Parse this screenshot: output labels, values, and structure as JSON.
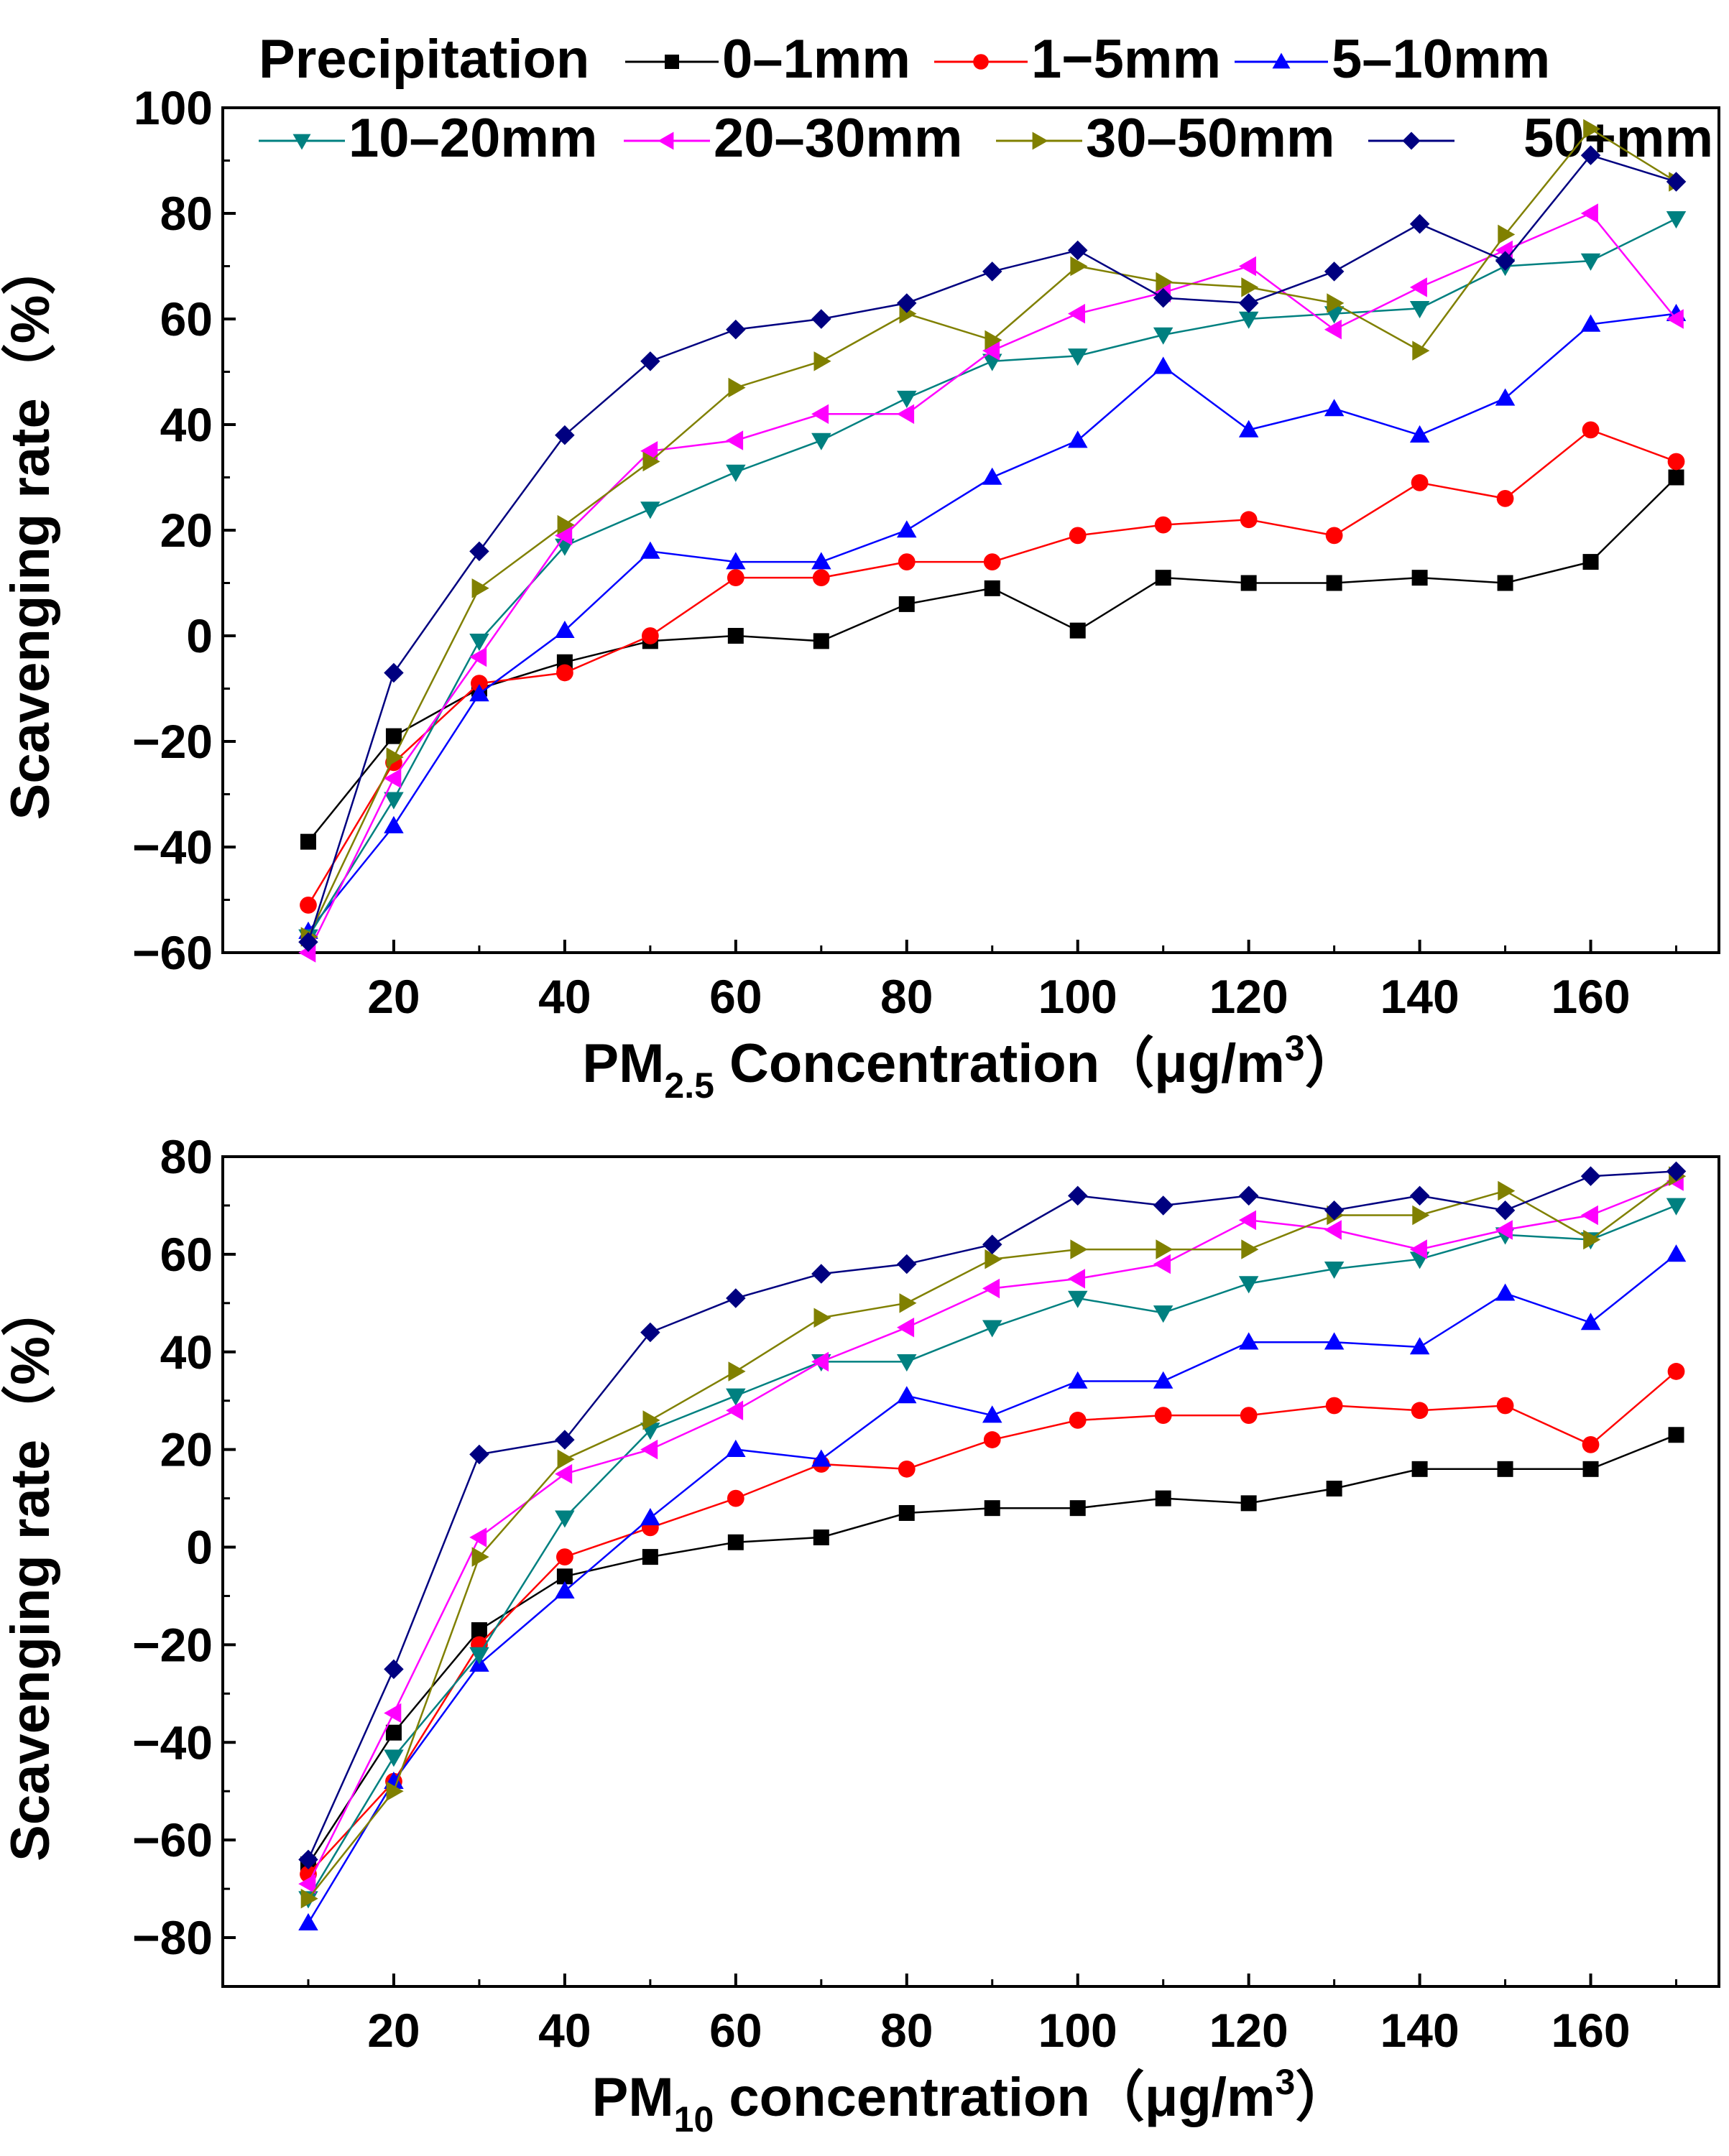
{
  "legend": {
    "title": "Precipitation",
    "entries": [
      {
        "name": "0–1mm",
        "color": "#000000",
        "marker": "square"
      },
      {
        "name": "1−5mm",
        "color": "#ff0000",
        "marker": "circle"
      },
      {
        "name": "5–10mm",
        "color": "#0000ff",
        "marker": "triangle-up"
      },
      {
        "name": "10–20mm",
        "color": "#008080",
        "marker": "triangle-down"
      },
      {
        "name": "20–30mm",
        "color": "#ff00ff",
        "marker": "triangle-left"
      },
      {
        "name": "30–50mm",
        "color": "#808000",
        "marker": "triangle-right"
      },
      {
        "name": "50+mm",
        "color": "#000080",
        "marker": "diamond"
      }
    ]
  },
  "chart_data": [
    {
      "type": "line",
      "title": "",
      "xlabel": "PM2.5 Concentration（μg/m3）",
      "xlabel_parts": {
        "prefix": "PM",
        "sub": "2.5",
        "middle": " Concentration（μg/m",
        "sup": "3",
        "suffix": "）"
      },
      "ylabel": "Scavenging rate（%）",
      "xlim": [
        0,
        175
      ],
      "ylim": [
        -60,
        100
      ],
      "xticks": [
        20,
        40,
        60,
        80,
        100,
        120,
        140,
        160
      ],
      "yticks": [
        -60,
        -40,
        -20,
        0,
        20,
        40,
        60,
        80,
        100
      ],
      "x": [
        10,
        20,
        30,
        40,
        50,
        60,
        70,
        80,
        90,
        100,
        110,
        120,
        130,
        140,
        150,
        160,
        170
      ],
      "series": [
        {
          "name": "0–1mm",
          "values": [
            -39,
            -19,
            -10,
            -5,
            -1,
            0,
            -1,
            6,
            9,
            1,
            11,
            10,
            10,
            11,
            10,
            14,
            30
          ]
        },
        {
          "name": "1−5mm",
          "values": [
            -51,
            -24,
            -9,
            -7,
            0,
            11,
            11,
            14,
            14,
            19,
            21,
            22,
            19,
            29,
            26,
            39,
            33
          ]
        },
        {
          "name": "5–10mm",
          "values": [
            -56,
            -36,
            -11,
            1,
            16,
            14,
            14,
            20,
            30,
            37,
            51,
            39,
            43,
            38,
            45,
            59,
            61
          ]
        },
        {
          "name": "10–20mm",
          "values": [
            -57,
            -31,
            -1,
            17,
            24,
            31,
            37,
            45,
            52,
            53,
            57,
            60,
            61,
            62,
            70,
            71,
            79
          ]
        },
        {
          "name": "20–30mm",
          "values": [
            -60,
            -27,
            -4,
            19,
            35,
            37,
            42,
            42,
            54,
            61,
            65,
            70,
            58,
            66,
            73,
            80,
            60
          ]
        },
        {
          "name": "30–50mm",
          "values": [
            -57,
            -23,
            9,
            21,
            33,
            47,
            52,
            61,
            56,
            70,
            67,
            66,
            63,
            54,
            76,
            96,
            86
          ]
        },
        {
          "name": "50+mm",
          "values": [
            -58,
            -7,
            16,
            38,
            52,
            58,
            60,
            63,
            69,
            73,
            64,
            63,
            69,
            78,
            71,
            91,
            86
          ]
        }
      ]
    },
    {
      "type": "line",
      "title": "",
      "xlabel": "PM10 concentration（μg/m3）",
      "xlabel_parts": {
        "prefix": "PM",
        "sub": "10",
        "middle": " concentration（μg/m",
        "sup": "3",
        "suffix": "）"
      },
      "ylabel": "Scavenging rate（%）",
      "xlim": [
        0,
        175
      ],
      "ylim": [
        -90,
        80
      ],
      "xticks": [
        20,
        40,
        60,
        80,
        100,
        120,
        140,
        160
      ],
      "yticks": [
        -80,
        -60,
        -40,
        -20,
        0,
        20,
        40,
        60,
        80
      ],
      "x": [
        10,
        20,
        30,
        40,
        50,
        60,
        70,
        80,
        90,
        100,
        110,
        120,
        130,
        140,
        150,
        160,
        170
      ],
      "series": [
        {
          "name": "0–1mm",
          "values": [
            -65,
            -38,
            -17,
            -6,
            -2,
            1,
            2,
            7,
            8,
            8,
            10,
            9,
            12,
            16,
            16,
            16,
            23
          ]
        },
        {
          "name": "1−5mm",
          "values": [
            -67,
            -48,
            -20,
            -2,
            4,
            10,
            17,
            16,
            22,
            26,
            27,
            27,
            29,
            28,
            29,
            21,
            36
          ]
        },
        {
          "name": "5–10mm",
          "values": [
            -77,
            -48,
            -24,
            -9,
            6,
            20,
            18,
            31,
            27,
            34,
            34,
            42,
            42,
            41,
            52,
            46,
            60
          ]
        },
        {
          "name": "10–20mm",
          "values": [
            -72,
            -43,
            -22,
            6,
            24,
            31,
            38,
            38,
            45,
            51,
            48,
            54,
            57,
            59,
            64,
            63,
            70
          ]
        },
        {
          "name": "20–30mm",
          "values": [
            -69,
            -34,
            2,
            15,
            20,
            28,
            38,
            45,
            53,
            55,
            58,
            67,
            65,
            61,
            65,
            68,
            75
          ]
        },
        {
          "name": "30–50mm",
          "values": [
            -72,
            -50,
            -2,
            18,
            26,
            36,
            47,
            50,
            59,
            61,
            61,
            61,
            68,
            68,
            73,
            63,
            76
          ]
        },
        {
          "name": "50+mm",
          "values": [
            -64,
            -25,
            19,
            22,
            44,
            51,
            56,
            58,
            62,
            72,
            70,
            72,
            69,
            72,
            69,
            76,
            77
          ]
        }
      ]
    }
  ]
}
